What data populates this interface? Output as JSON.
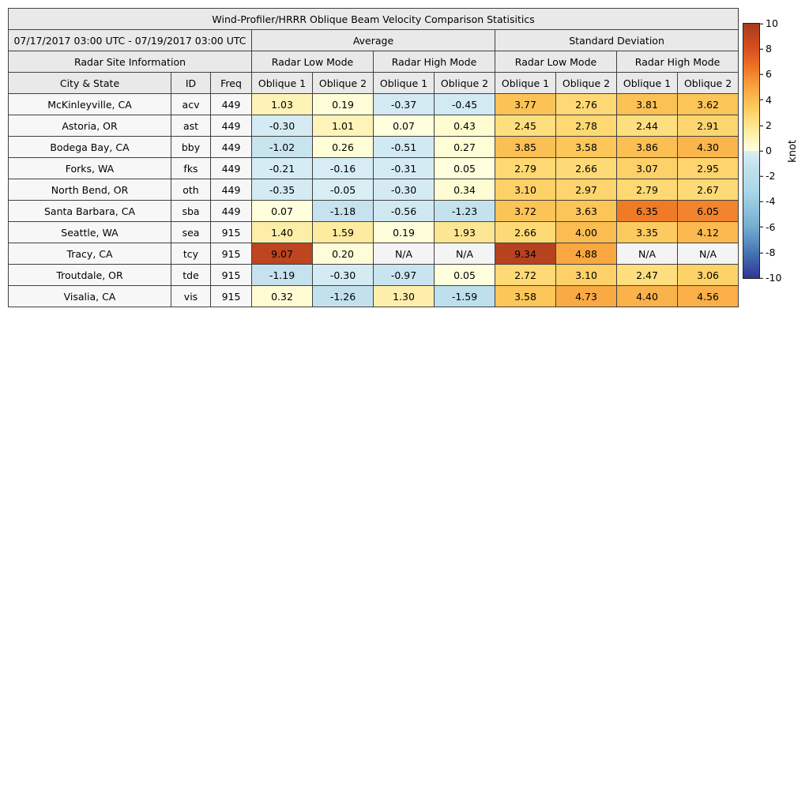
{
  "chart_data": {
    "type": "table",
    "title": "Wind-Profiler/HRRR Oblique Beam Velocity Comparison Statisitics",
    "date_range": "07/17/2017 03:00 UTC - 07/19/2017 03:00 UTC",
    "groups": {
      "average": "Average",
      "std": "Standard Deviation"
    },
    "subgroups": {
      "site_info": "Radar Site Information",
      "low": "Radar Low Mode",
      "high": "Radar High Mode"
    },
    "columns": {
      "city": "City & State",
      "id": "ID",
      "freq": "Freq",
      "oblique1": "Oblique 1",
      "oblique2": "Oblique 2"
    },
    "rows": [
      {
        "city": "McKinleyville, CA",
        "id": "acv",
        "freq": 449,
        "values": [
          1.03,
          0.19,
          -0.37,
          -0.45,
          3.77,
          2.76,
          3.81,
          3.62
        ]
      },
      {
        "city": "Astoria, OR",
        "id": "ast",
        "freq": 449,
        "values": [
          -0.3,
          1.01,
          0.07,
          0.43,
          2.45,
          2.78,
          2.44,
          2.91
        ]
      },
      {
        "city": "Bodega Bay, CA",
        "id": "bby",
        "freq": 449,
        "values": [
          -1.02,
          0.26,
          -0.51,
          0.27,
          3.85,
          3.58,
          3.86,
          4.3
        ]
      },
      {
        "city": "Forks, WA",
        "id": "fks",
        "freq": 449,
        "values": [
          -0.21,
          -0.16,
          -0.31,
          0.05,
          2.79,
          2.66,
          3.07,
          2.95
        ]
      },
      {
        "city": "North Bend, OR",
        "id": "oth",
        "freq": 449,
        "values": [
          -0.35,
          -0.05,
          -0.3,
          0.34,
          3.1,
          2.97,
          2.79,
          2.67
        ]
      },
      {
        "city": "Santa Barbara, CA",
        "id": "sba",
        "freq": 449,
        "values": [
          0.07,
          -1.18,
          -0.56,
          -1.23,
          3.72,
          3.63,
          6.35,
          6.05
        ]
      },
      {
        "city": "Seattle, WA",
        "id": "sea",
        "freq": 915,
        "values": [
          1.4,
          1.59,
          0.19,
          1.93,
          2.66,
          4.0,
          3.35,
          4.12
        ]
      },
      {
        "city": "Tracy, CA",
        "id": "tcy",
        "freq": 915,
        "values": [
          9.07,
          0.2,
          "N/A",
          "N/A",
          9.34,
          4.88,
          "N/A",
          "N/A"
        ]
      },
      {
        "city": "Troutdale, OR",
        "id": "tde",
        "freq": 915,
        "values": [
          -1.19,
          -0.3,
          -0.97,
          0.05,
          2.72,
          3.1,
          2.47,
          3.06
        ]
      },
      {
        "city": "Visalia, CA",
        "id": "vis",
        "freq": 915,
        "values": [
          0.32,
          -1.26,
          1.3,
          -1.59,
          3.58,
          4.73,
          4.4,
          4.56
        ]
      }
    ],
    "na_label": "N/A",
    "colorbar": {
      "label": "knot",
      "min": -10,
      "max": 10,
      "ticks": [
        10,
        8,
        6,
        4,
        2,
        0,
        -2,
        -4,
        -6,
        -8,
        -10
      ],
      "stops": [
        {
          "v": -10,
          "c": "#313695"
        },
        {
          "v": -8,
          "c": "#4575b4"
        },
        {
          "v": -6,
          "c": "#74add1"
        },
        {
          "v": -3,
          "c": "#abd9e9"
        },
        {
          "v": -1.5,
          "c": "#bfdfec"
        },
        {
          "v": -0.001,
          "c": "#daeef5"
        },
        {
          "v": 0,
          "c": "#ffffe0"
        },
        {
          "v": 0.5,
          "c": "#fffbcd"
        },
        {
          "v": 1.5,
          "c": "#fdeca3"
        },
        {
          "v": 2.5,
          "c": "#fede7d"
        },
        {
          "v": 3.5,
          "c": "#fcc85a"
        },
        {
          "v": 5,
          "c": "#f9a43f"
        },
        {
          "v": 6.5,
          "c": "#ee7624"
        },
        {
          "v": 8,
          "c": "#d84f21"
        },
        {
          "v": 10,
          "c": "#a63c1e"
        }
      ]
    }
  }
}
